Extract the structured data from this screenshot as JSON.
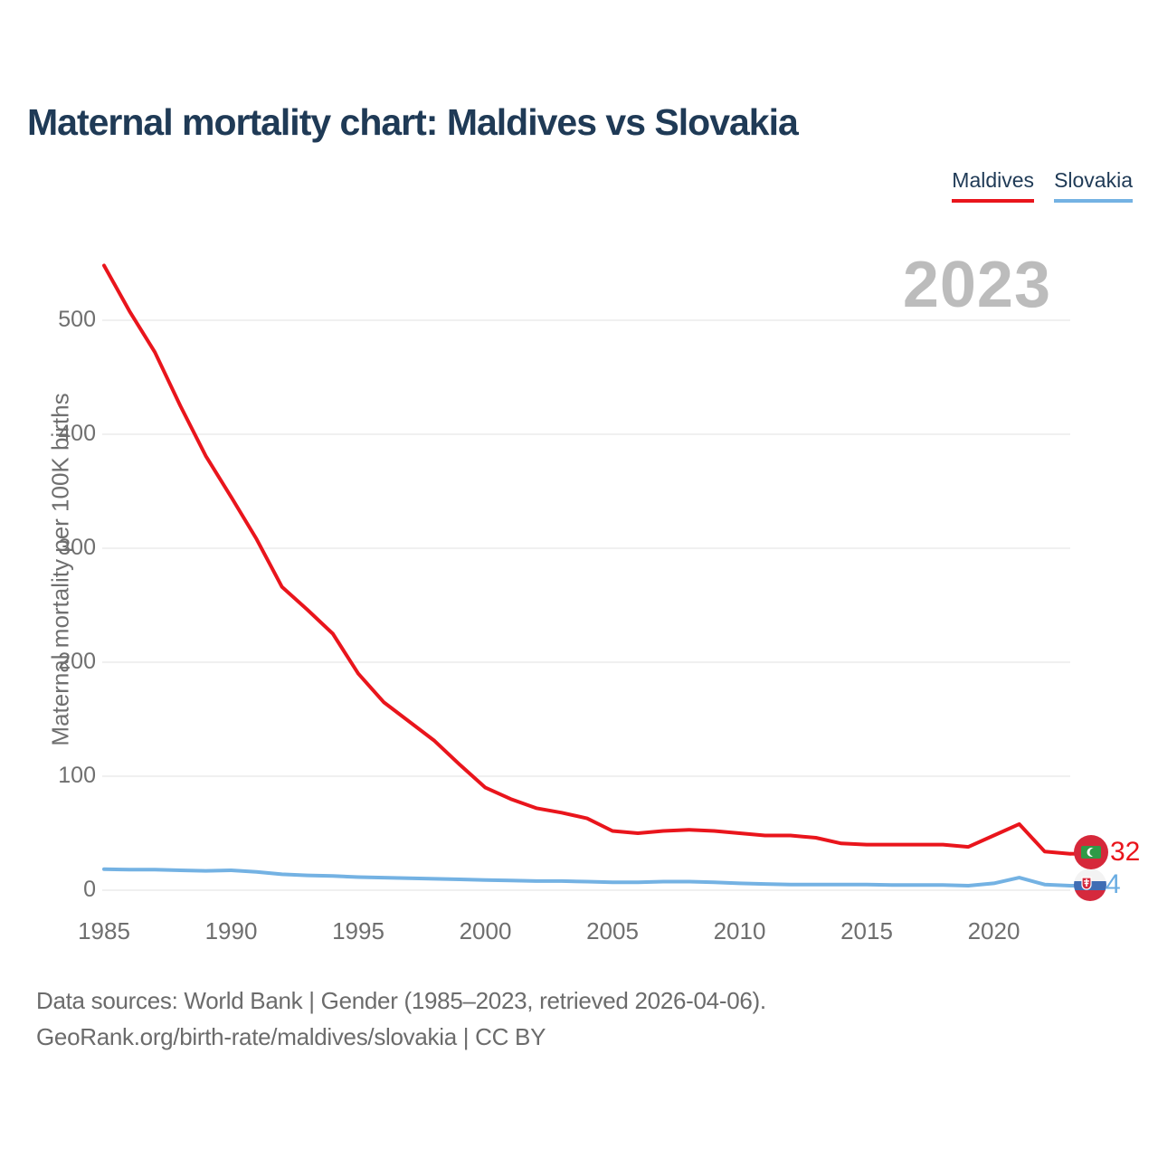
{
  "title": "Maternal mortality chart: Maldives vs Slovakia",
  "watermark": "2023",
  "legend": [
    {
      "label": "Maldives",
      "color": "#e9151c"
    },
    {
      "label": "Slovakia",
      "color": "#74b2e3"
    }
  ],
  "end_labels": [
    {
      "series": "Maldives",
      "value": "32",
      "icon": "maldives-flag-icon",
      "color": "#e9151c"
    },
    {
      "series": "Slovakia",
      "value": "4",
      "icon": "slovakia-flag-icon",
      "color": "#6aace2"
    }
  ],
  "footer": {
    "line1": "Data sources: World Bank | Gender (1985–2023, retrieved 2026-04-06).",
    "line2": "GeoRank.org/birth-rate/maldives/slovakia | CC BY"
  },
  "chart_data": {
    "type": "line",
    "title": "Maternal mortality chart: Maldives vs Slovakia",
    "ylabel": "Maternal mortality per 100K births",
    "xlabel": "",
    "grid": "horizontal",
    "legend_position": "top-right",
    "ylim": [
      0,
      560
    ],
    "y_ticks": [
      0,
      100,
      200,
      300,
      400,
      500
    ],
    "x_ticks": [
      1985,
      1990,
      1995,
      2000,
      2005,
      2010,
      2015,
      2020
    ],
    "x": [
      1985,
      1986,
      1987,
      1988,
      1989,
      1990,
      1991,
      1992,
      1993,
      1994,
      1995,
      1996,
      1997,
      1998,
      1999,
      2000,
      2001,
      2002,
      2003,
      2004,
      2005,
      2006,
      2007,
      2008,
      2009,
      2010,
      2011,
      2012,
      2013,
      2014,
      2015,
      2016,
      2017,
      2018,
      2019,
      2020,
      2021,
      2022,
      2023
    ],
    "series": [
      {
        "name": "Maldives",
        "color": "#e9151c",
        "end_value": 32,
        "values": [
          548,
          508,
          472,
          425,
          381,
          345,
          308,
          266,
          246,
          225,
          190,
          165,
          148,
          131,
          110,
          90,
          80,
          72,
          68,
          63,
          52,
          50,
          52,
          53,
          52,
          50,
          48,
          48,
          46,
          41,
          40,
          40,
          40,
          40,
          38,
          48,
          58,
          34,
          32
        ]
      },
      {
        "name": "Slovakia",
        "color": "#74b2e3",
        "end_value": 4,
        "values": [
          18.5,
          18,
          18,
          17.5,
          17,
          17.5,
          16,
          14,
          13,
          12.5,
          11.5,
          11,
          10.5,
          10,
          9.5,
          9,
          8.5,
          8,
          8,
          7.5,
          7,
          7,
          7.5,
          7.5,
          7,
          6,
          5.5,
          5,
          5,
          5,
          5,
          4.5,
          4.5,
          4.5,
          4,
          6,
          11,
          5,
          4
        ]
      }
    ]
  }
}
